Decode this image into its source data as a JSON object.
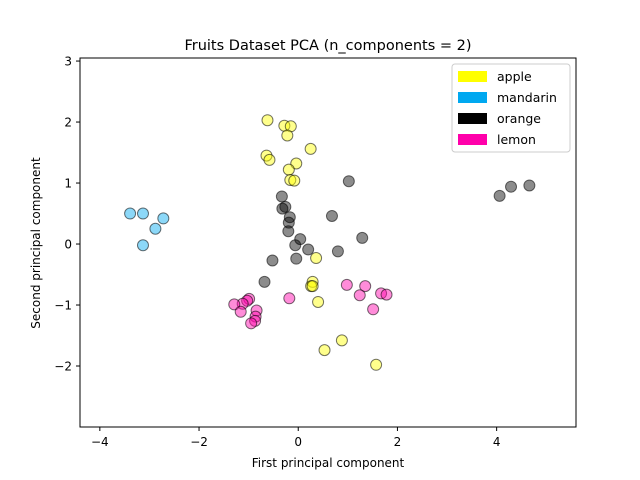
{
  "chart_data": {
    "type": "scatter",
    "title": "Fruits Dataset PCA (n_components = 2)",
    "xlabel": "First principal component",
    "ylabel": "Second principal component",
    "xlim": [
      -4.4,
      5.6
    ],
    "ylim": [
      -3.0,
      3.05
    ],
    "xticks": [
      -4,
      -2,
      0,
      2,
      4
    ],
    "yticks": [
      -2,
      -1,
      0,
      1,
      2,
      3
    ],
    "xtick_labels": [
      "−4",
      "−2",
      "0",
      "2",
      "4"
    ],
    "ytick_labels": [
      "−2",
      "−1",
      "0",
      "1",
      "2",
      "3"
    ],
    "grid": false,
    "legend_position": "top-right",
    "series": [
      {
        "name": "apple",
        "color": "#ffff00",
        "points": [
          [
            -0.62,
            2.03
          ],
          [
            -0.28,
            1.94
          ],
          [
            -0.15,
            1.93
          ],
          [
            -0.22,
            1.78
          ],
          [
            0.25,
            1.56
          ],
          [
            -0.64,
            1.45
          ],
          [
            -0.58,
            1.38
          ],
          [
            -0.04,
            1.32
          ],
          [
            -0.19,
            1.22
          ],
          [
            -0.16,
            1.05
          ],
          [
            -0.08,
            1.04
          ],
          [
            0.36,
            -0.23
          ],
          [
            0.29,
            -0.62
          ],
          [
            0.26,
            -0.69
          ],
          [
            0.29,
            -0.69
          ],
          [
            0.4,
            -0.95
          ],
          [
            0.88,
            -1.58
          ],
          [
            0.53,
            -1.74
          ],
          [
            1.57,
            -1.98
          ]
        ]
      },
      {
        "name": "mandarin",
        "color": "#00a8f0",
        "points": [
          [
            -3.39,
            0.5
          ],
          [
            -3.13,
            0.5
          ],
          [
            -2.72,
            0.42
          ],
          [
            -2.88,
            0.25
          ],
          [
            -3.13,
            -0.02
          ]
        ]
      },
      {
        "name": "orange",
        "color": "#000000",
        "points": [
          [
            1.02,
            1.03
          ],
          [
            -0.33,
            0.78
          ],
          [
            -0.26,
            0.61
          ],
          [
            -0.32,
            0.58
          ],
          [
            -0.17,
            0.44
          ],
          [
            -0.19,
            0.35
          ],
          [
            0.68,
            0.46
          ],
          [
            -0.2,
            0.21
          ],
          [
            1.29,
            0.1
          ],
          [
            0.04,
            0.08
          ],
          [
            -0.06,
            -0.02
          ],
          [
            0.2,
            -0.09
          ],
          [
            0.8,
            -0.12
          ],
          [
            -0.04,
            -0.24
          ],
          [
            -0.52,
            -0.27
          ],
          [
            -0.68,
            -0.62
          ],
          [
            4.06,
            0.79
          ],
          [
            4.29,
            0.94
          ],
          [
            4.66,
            0.96
          ]
        ]
      },
      {
        "name": "lemon",
        "color": "#ff00aa",
        "points": [
          [
            0.98,
            -0.67
          ],
          [
            1.35,
            -0.69
          ],
          [
            1.67,
            -0.81
          ],
          [
            1.78,
            -0.83
          ],
          [
            1.24,
            -0.84
          ],
          [
            -0.18,
            -0.89
          ],
          [
            -0.99,
            -0.9
          ],
          [
            -1.03,
            -0.93
          ],
          [
            -1.12,
            -0.98
          ],
          [
            -1.29,
            -0.99
          ],
          [
            1.51,
            -1.07
          ],
          [
            -0.84,
            -1.09
          ],
          [
            -1.16,
            -1.11
          ],
          [
            -0.86,
            -1.19
          ],
          [
            -0.87,
            -1.26
          ],
          [
            -0.95,
            -1.3
          ]
        ]
      }
    ]
  }
}
